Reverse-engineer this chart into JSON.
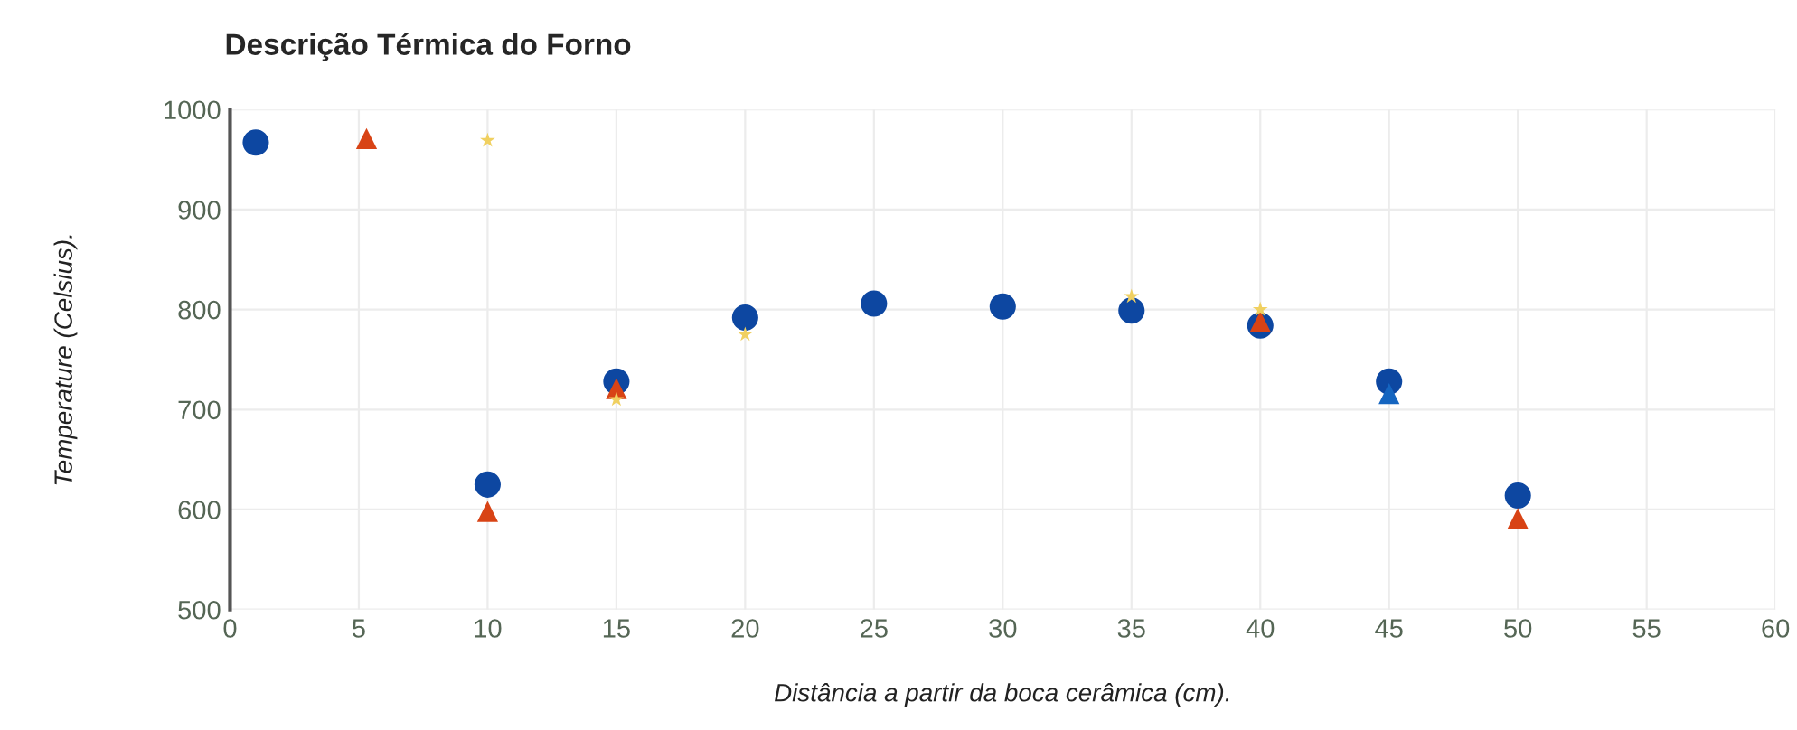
{
  "chart_data": {
    "type": "scatter",
    "title": "Descrição Térmica do Forno",
    "xlabel": "Distância a partir da boca cerâmica (cm).",
    "ylabel": "Temperature (Celsius).",
    "xlim": [
      0,
      60
    ],
    "xticks": [
      0,
      5,
      10,
      15,
      20,
      25,
      30,
      35,
      40,
      45,
      50,
      55,
      60
    ],
    "ylim": [
      500,
      1000
    ],
    "yticks": [
      500,
      600,
      700,
      800,
      900,
      1000
    ],
    "grid": true,
    "series": [
      {
        "color": "#0d47a1",
        "marker": "circle",
        "x": [
          1,
          10,
          15,
          20,
          25,
          30,
          35,
          40,
          45,
          50
        ],
        "values": [
          967,
          625,
          728,
          792,
          806,
          803,
          799,
          784,
          728,
          614
        ]
      },
      {
        "color": "#d84315",
        "marker": "triangle",
        "x": [
          5.3,
          10,
          15,
          40,
          50
        ],
        "values": [
          971,
          598,
          721,
          788,
          591
        ]
      },
      {
        "color": "#f0d060",
        "marker": "star",
        "x": [
          10,
          15,
          20,
          35,
          40
        ],
        "values": [
          969,
          710,
          775,
          813,
          800
        ]
      },
      {
        "color": "#1565c0",
        "marker": "triangle",
        "x": [
          45
        ],
        "values": [
          716
        ]
      }
    ]
  }
}
